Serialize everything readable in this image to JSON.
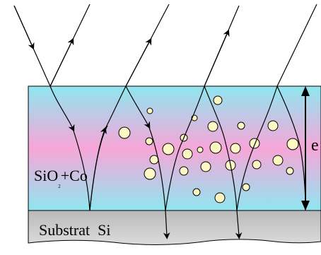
{
  "diagram": {
    "film_label_main": "SiO",
    "film_label_subscript": "2",
    "film_label_suffix": "+Co",
    "substrate_label": "Substrat  Si",
    "thickness_label": "e"
  },
  "colors": {
    "film_cyan": "#8fe6f0",
    "film_pink": "#f7a6d8",
    "substrate": "#c9c9c9",
    "particle_fill": "#fdf7c4",
    "ink": "#000000"
  }
}
